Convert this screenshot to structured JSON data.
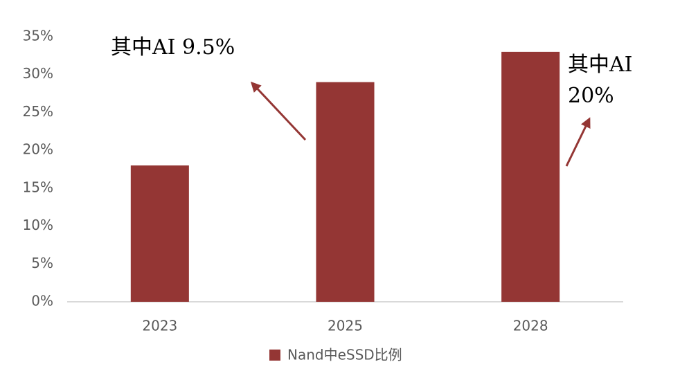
{
  "chart_data": {
    "type": "bar",
    "categories": [
      "2023",
      "2025",
      "2028"
    ],
    "series": [
      {
        "name": "Nand中eSSD比例",
        "color": "#943634",
        "values": [
          18,
          29,
          33
        ]
      }
    ],
    "ylim": [
      0,
      35
    ],
    "yticks": [
      {
        "value": 0,
        "label": "0%"
      },
      {
        "value": 5,
        "label": "5%"
      },
      {
        "value": 10,
        "label": "10%"
      },
      {
        "value": 15,
        "label": "15%"
      },
      {
        "value": 20,
        "label": "20%"
      },
      {
        "value": 25,
        "label": "25%"
      },
      {
        "value": 30,
        "label": "30%"
      },
      {
        "value": 35,
        "label": "35%"
      }
    ],
    "grid": false,
    "legend": "bottom",
    "annotations": [
      {
        "lines": [
          "其中AI 9.5%"
        ]
      },
      {
        "lines": [
          "其中AI",
          "20%"
        ]
      }
    ]
  }
}
